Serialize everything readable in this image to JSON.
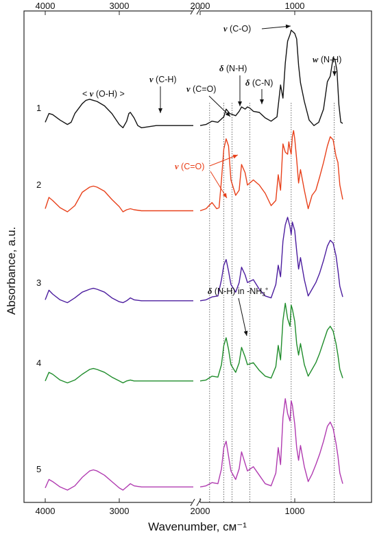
{
  "chart_data": {
    "type": "line",
    "title": "",
    "xlabel": "Wavenumber, см⁻¹",
    "ylabel": "Absorbance, a.u.",
    "x_reversed": true,
    "axis_break": [
      2000,
      1800
    ],
    "xlim": [
      4000,
      500
    ],
    "x_ticks": [
      4000,
      3000,
      2000,
      1000
    ],
    "y_ticks": [],
    "grid": false,
    "stacked_offset": true,
    "series": [
      {
        "name": "1",
        "color": "#111111",
        "x": [
          4000,
          3950,
          3900,
          3800,
          3700,
          3650,
          3600,
          3500,
          3450,
          3400,
          3350,
          3300,
          3200,
          3100,
          3000,
          2950,
          2900,
          2870,
          2850,
          2800,
          2750,
          2700,
          2600,
          2500,
          2400,
          2300,
          2200,
          2100,
          2000,
          1800,
          1750,
          1700,
          1650,
          1600,
          1580,
          1550,
          1500,
          1470,
          1450,
          1420,
          1400,
          1380,
          1350,
          1300,
          1250,
          1200,
          1150,
          1120,
          1100,
          1080,
          1060,
          1040,
          1030,
          1020,
          1000,
          980,
          960,
          940,
          900,
          850,
          800,
          750,
          700,
          660,
          630,
          600,
          580,
          560,
          540,
          520,
          500
        ],
        "y": [
          0.36,
          0.44,
          0.43,
          0.38,
          0.34,
          0.36,
          0.44,
          0.53,
          0.56,
          0.57,
          0.56,
          0.55,
          0.51,
          0.44,
          0.34,
          0.31,
          0.37,
          0.44,
          0.45,
          0.4,
          0.33,
          0.31,
          0.32,
          0.33,
          0.33,
          0.33,
          0.33,
          0.33,
          0.33,
          0.33,
          0.34,
          0.37,
          0.36,
          0.41,
          0.48,
          0.44,
          0.42,
          0.46,
          0.5,
          0.48,
          0.5,
          0.49,
          0.46,
          0.45,
          0.4,
          0.37,
          0.41,
          0.7,
          0.58,
          0.9,
          1.1,
          1.16,
          1.2,
          1.19,
          1.17,
          1.12,
          0.88,
          0.72,
          0.55,
          0.38,
          0.33,
          0.36,
          0.48,
          0.73,
          0.78,
          0.95,
          0.93,
          0.83,
          0.52,
          0.36,
          0.35
        ]
      },
      {
        "name": "2",
        "color": "#e8401a",
        "x": [
          4000,
          3950,
          3900,
          3800,
          3700,
          3600,
          3500,
          3400,
          3350,
          3300,
          3200,
          3100,
          3000,
          2950,
          2900,
          2850,
          2800,
          2700,
          2600,
          2500,
          2400,
          2300,
          2200,
          2100,
          2000,
          1800,
          1750,
          1700,
          1660,
          1640,
          1620,
          1600,
          1580,
          1560,
          1540,
          1500,
          1470,
          1450,
          1420,
          1400,
          1350,
          1300,
          1250,
          1200,
          1160,
          1140,
          1120,
          1100,
          1080,
          1060,
          1050,
          1040,
          1030,
          1020,
          1010,
          1000,
          980,
          960,
          940,
          900,
          860,
          820,
          780,
          740,
          700,
          660,
          630,
          600,
          570,
          550,
          530,
          500
        ],
        "y": [
          0.27,
          0.38,
          0.35,
          0.28,
          0.24,
          0.3,
          0.43,
          0.48,
          0.49,
          0.48,
          0.44,
          0.36,
          0.29,
          0.24,
          0.26,
          0.27,
          0.26,
          0.25,
          0.25,
          0.25,
          0.25,
          0.25,
          0.25,
          0.25,
          0.25,
          0.25,
          0.27,
          0.33,
          0.27,
          0.28,
          0.55,
          0.85,
          0.95,
          0.88,
          0.55,
          0.4,
          0.45,
          0.7,
          0.62,
          0.5,
          0.55,
          0.5,
          0.42,
          0.3,
          0.35,
          0.6,
          0.45,
          0.9,
          0.82,
          0.8,
          0.92,
          0.85,
          0.8,
          0.97,
          1.03,
          0.95,
          0.75,
          0.52,
          0.65,
          0.45,
          0.27,
          0.4,
          0.45,
          0.58,
          0.72,
          0.88,
          0.97,
          0.94,
          0.78,
          0.72,
          0.5,
          0.36
        ]
      },
      {
        "name": "3",
        "color": "#4b1c9e",
        "x": [
          4000,
          3950,
          3900,
          3800,
          3700,
          3600,
          3500,
          3400,
          3350,
          3300,
          3200,
          3100,
          3000,
          2950,
          2900,
          2850,
          2800,
          2700,
          2600,
          2500,
          2400,
          2300,
          2200,
          2100,
          2000,
          1800,
          1750,
          1700,
          1650,
          1620,
          1600,
          1580,
          1560,
          1540,
          1500,
          1470,
          1450,
          1420,
          1400,
          1350,
          1300,
          1250,
          1200,
          1160,
          1140,
          1120,
          1100,
          1080,
          1060,
          1040,
          1030,
          1020,
          1000,
          980,
          960,
          940,
          900,
          860,
          820,
          780,
          740,
          700,
          660,
          630,
          600,
          570,
          550,
          530,
          500
        ],
        "y": [
          0.34,
          0.44,
          0.4,
          0.34,
          0.31,
          0.36,
          0.42,
          0.45,
          0.46,
          0.45,
          0.42,
          0.36,
          0.32,
          0.31,
          0.33,
          0.36,
          0.34,
          0.33,
          0.33,
          0.33,
          0.33,
          0.33,
          0.33,
          0.33,
          0.33,
          0.33,
          0.34,
          0.37,
          0.38,
          0.55,
          0.7,
          0.76,
          0.64,
          0.5,
          0.42,
          0.52,
          0.68,
          0.6,
          0.52,
          0.55,
          0.45,
          0.38,
          0.36,
          0.5,
          0.7,
          0.58,
          0.95,
          1.12,
          1.2,
          1.1,
          1.02,
          1.15,
          1.06,
          0.85,
          0.66,
          0.78,
          0.55,
          0.38,
          0.45,
          0.52,
          0.62,
          0.75,
          0.9,
          0.96,
          0.93,
          0.8,
          0.65,
          0.48,
          0.37
        ]
      },
      {
        "name": "4",
        "color": "#1e8c2a",
        "x": [
          4000,
          3950,
          3900,
          3800,
          3700,
          3600,
          3500,
          3400,
          3350,
          3300,
          3200,
          3100,
          3000,
          2950,
          2900,
          2850,
          2800,
          2700,
          2600,
          2500,
          2400,
          2300,
          2200,
          2100,
          2000,
          1800,
          1750,
          1700,
          1650,
          1620,
          1600,
          1580,
          1560,
          1540,
          1500,
          1470,
          1450,
          1420,
          1400,
          1350,
          1300,
          1250,
          1200,
          1160,
          1140,
          1120,
          1100,
          1080,
          1060,
          1040,
          1030,
          1020,
          1000,
          980,
          960,
          940,
          900,
          860,
          820,
          780,
          740,
          700,
          660,
          630,
          600,
          570,
          550,
          530,
          500
        ],
        "y": [
          0.33,
          0.42,
          0.4,
          0.34,
          0.31,
          0.34,
          0.4,
          0.45,
          0.46,
          0.45,
          0.42,
          0.37,
          0.33,
          0.31,
          0.33,
          0.34,
          0.33,
          0.33,
          0.33,
          0.33,
          0.33,
          0.33,
          0.33,
          0.33,
          0.33,
          0.33,
          0.34,
          0.38,
          0.37,
          0.5,
          0.7,
          0.78,
          0.66,
          0.5,
          0.42,
          0.52,
          0.68,
          0.58,
          0.5,
          0.52,
          0.44,
          0.38,
          0.36,
          0.48,
          0.7,
          0.55,
          0.96,
          1.14,
          0.98,
          0.9,
          1.12,
          1.08,
          0.95,
          0.72,
          0.6,
          0.72,
          0.5,
          0.38,
          0.45,
          0.52,
          0.62,
          0.74,
          0.86,
          0.9,
          0.85,
          0.72,
          0.6,
          0.45,
          0.36
        ]
      },
      {
        "name": "5",
        "color": "#b03ab0",
        "x": [
          4000,
          3950,
          3900,
          3800,
          3700,
          3600,
          3500,
          3400,
          3350,
          3300,
          3200,
          3100,
          3000,
          2950,
          2900,
          2850,
          2800,
          2700,
          2600,
          2500,
          2400,
          2300,
          2200,
          2100,
          2000,
          1800,
          1750,
          1700,
          1650,
          1620,
          1600,
          1580,
          1560,
          1540,
          1500,
          1470,
          1450,
          1420,
          1400,
          1350,
          1300,
          1250,
          1200,
          1160,
          1140,
          1120,
          1100,
          1080,
          1060,
          1040,
          1030,
          1020,
          1000,
          980,
          960,
          940,
          900,
          860,
          820,
          780,
          740,
          700,
          660,
          630,
          600,
          570,
          550,
          530,
          500
        ],
        "y": [
          0.32,
          0.4,
          0.38,
          0.33,
          0.3,
          0.34,
          0.42,
          0.48,
          0.49,
          0.48,
          0.44,
          0.38,
          0.32,
          0.3,
          0.33,
          0.36,
          0.34,
          0.33,
          0.33,
          0.33,
          0.33,
          0.33,
          0.33,
          0.33,
          0.33,
          0.33,
          0.34,
          0.37,
          0.36,
          0.5,
          0.7,
          0.76,
          0.62,
          0.48,
          0.4,
          0.5,
          0.66,
          0.55,
          0.48,
          0.52,
          0.44,
          0.36,
          0.34,
          0.46,
          0.7,
          0.54,
          0.98,
          1.16,
          1.02,
          0.95,
          1.14,
          1.1,
          0.92,
          0.7,
          0.58,
          0.72,
          0.52,
          0.38,
          0.45,
          0.54,
          0.64,
          0.76,
          0.9,
          0.94,
          0.88,
          0.74,
          0.62,
          0.46,
          0.36
        ]
      }
    ],
    "annotations": [
      {
        "label_html": "&lt; <tspan font-weight='bold' font-style='italic' font-family='Liberation Serif, serif'>ν</tspan> (O-H) &gt;",
        "text": "< ν (O-H) >"
      },
      {
        "text": "ν (C-H)"
      },
      {
        "text": "ν (C=O)"
      },
      {
        "text": "δ (N-H)"
      },
      {
        "text": "δ (C-N)"
      },
      {
        "text": "ν (C-O)"
      },
      {
        "text": "w (N-H)"
      },
      {
        "text": "ν (C=O)"
      },
      {
        "text": "δ (N-H) in -NH₃⁺"
      }
    ],
    "guide_lines": [
      1720,
      1600,
      1530,
      1380,
      1030,
      590
    ]
  },
  "labels": {
    "ann_oh_prefix": "< ",
    "ann_oh_sym": "ν",
    "ann_oh_rest": " (O-H) >",
    "ann_ch_sym": "ν",
    "ann_ch_rest": " (C-H)",
    "ann_co1_sym": "ν",
    "ann_co1_rest": " (C=O)",
    "ann_nh_sym": "δ",
    "ann_nh_rest": " (N-H)",
    "ann_cn_sym": "δ",
    "ann_cn_rest": " (C-N)",
    "ann_cob_sym": "ν",
    "ann_cob_rest": " (C-O)",
    "ann_w_sym": "w",
    "ann_w_rest": " (N-H)",
    "ann_co2_sym": "ν",
    "ann_co2_rest": " (C=O)",
    "ann_nh3_sym": "δ",
    "ann_nh3_rest": " (N-H) in -NH",
    "ann_nh3_sub": "3",
    "ann_nh3_sup": "+"
  }
}
